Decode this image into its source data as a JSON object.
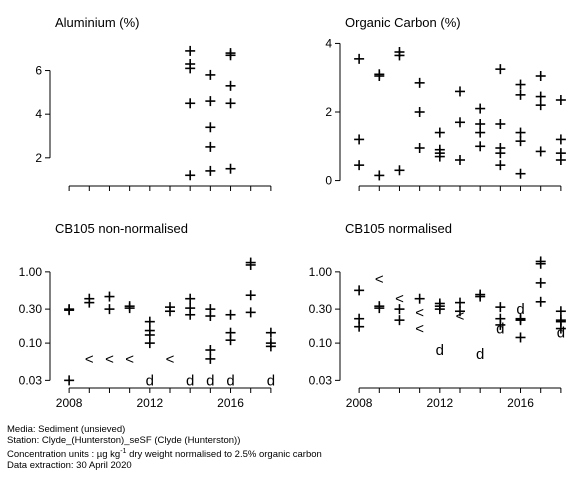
{
  "chart_data": [
    {
      "type": "scatter",
      "title": "Aluminium (%)",
      "xlim": [
        2007.3,
        2018.7
      ],
      "ylim": [
        0.8,
        7.4
      ],
      "log_y": false,
      "yticks": [
        2,
        4,
        6
      ],
      "ytick_labels": [
        "2",
        "4",
        "6"
      ],
      "xticks": [
        2008,
        2012,
        2016
      ],
      "xtick_labels": [],
      "points": [
        {
          "x": 2014,
          "y": 6.9,
          "m": "+"
        },
        {
          "x": 2014,
          "y": 6.3,
          "m": "+"
        },
        {
          "x": 2014,
          "y": 6.1,
          "m": "+"
        },
        {
          "x": 2014,
          "y": 4.5,
          "m": "+"
        },
        {
          "x": 2014,
          "y": 1.2,
          "m": "+"
        },
        {
          "x": 2015,
          "y": 5.8,
          "m": "+"
        },
        {
          "x": 2015,
          "y": 4.6,
          "m": "+"
        },
        {
          "x": 2015,
          "y": 3.4,
          "m": "+"
        },
        {
          "x": 2015,
          "y": 2.5,
          "m": "+"
        },
        {
          "x": 2015,
          "y": 1.4,
          "m": "+"
        },
        {
          "x": 2016,
          "y": 6.8,
          "m": "+"
        },
        {
          "x": 2016,
          "y": 6.7,
          "m": "+"
        },
        {
          "x": 2016,
          "y": 5.3,
          "m": "+"
        },
        {
          "x": 2016,
          "y": 4.5,
          "m": "+"
        },
        {
          "x": 2016,
          "y": 1.5,
          "m": "+"
        }
      ]
    },
    {
      "type": "scatter",
      "title": "Organic Carbon (%)",
      "xlim": [
        2007.3,
        2018.7
      ],
      "ylim": [
        -0.1,
        4.1
      ],
      "log_y": false,
      "yticks": [
        0,
        2,
        4
      ],
      "ytick_labels": [
        "0",
        "2",
        "4"
      ],
      "xticks": [
        2008,
        2012,
        2016
      ],
      "xtick_labels": [],
      "points": [
        {
          "x": 2008,
          "y": 3.55,
          "m": "+"
        },
        {
          "x": 2008,
          "y": 1.2,
          "m": "+"
        },
        {
          "x": 2008,
          "y": 0.45,
          "m": "+"
        },
        {
          "x": 2009,
          "y": 3.1,
          "m": "+"
        },
        {
          "x": 2009,
          "y": 3.05,
          "m": "+"
        },
        {
          "x": 2009,
          "y": 0.15,
          "m": "+"
        },
        {
          "x": 2010,
          "y": 3.75,
          "m": "+"
        },
        {
          "x": 2010,
          "y": 3.65,
          "m": "+"
        },
        {
          "x": 2010,
          "y": 0.3,
          "m": "+"
        },
        {
          "x": 2011,
          "y": 2.85,
          "m": "+"
        },
        {
          "x": 2011,
          "y": 2.0,
          "m": "+"
        },
        {
          "x": 2011,
          "y": 0.95,
          "m": "+"
        },
        {
          "x": 2012,
          "y": 1.4,
          "m": "+"
        },
        {
          "x": 2012,
          "y": 0.9,
          "m": "+"
        },
        {
          "x": 2012,
          "y": 0.8,
          "m": "+"
        },
        {
          "x": 2012,
          "y": 0.7,
          "m": "+"
        },
        {
          "x": 2013,
          "y": 2.6,
          "m": "+"
        },
        {
          "x": 2013,
          "y": 1.7,
          "m": "+"
        },
        {
          "x": 2013,
          "y": 0.6,
          "m": "+"
        },
        {
          "x": 2014,
          "y": 2.1,
          "m": "+"
        },
        {
          "x": 2014,
          "y": 1.65,
          "m": "+"
        },
        {
          "x": 2014,
          "y": 1.4,
          "m": "+"
        },
        {
          "x": 2014,
          "y": 1.0,
          "m": "+"
        },
        {
          "x": 2015,
          "y": 3.25,
          "m": "+"
        },
        {
          "x": 2015,
          "y": 1.65,
          "m": "+"
        },
        {
          "x": 2015,
          "y": 0.95,
          "m": "+"
        },
        {
          "x": 2015,
          "y": 0.8,
          "m": "+"
        },
        {
          "x": 2015,
          "y": 0.45,
          "m": "+"
        },
        {
          "x": 2016,
          "y": 2.8,
          "m": "+"
        },
        {
          "x": 2016,
          "y": 2.5,
          "m": "+"
        },
        {
          "x": 2016,
          "y": 1.4,
          "m": "+"
        },
        {
          "x": 2016,
          "y": 1.15,
          "m": "+"
        },
        {
          "x": 2016,
          "y": 0.2,
          "m": "+"
        },
        {
          "x": 2017,
          "y": 3.05,
          "m": "+"
        },
        {
          "x": 2017,
          "y": 2.45,
          "m": "+"
        },
        {
          "x": 2017,
          "y": 2.2,
          "m": "+"
        },
        {
          "x": 2017,
          "y": 0.85,
          "m": "+"
        },
        {
          "x": 2018,
          "y": 2.35,
          "m": "+"
        },
        {
          "x": 2018,
          "y": 1.2,
          "m": "+"
        },
        {
          "x": 2018,
          "y": 0.8,
          "m": "+"
        },
        {
          "x": 2018,
          "y": 0.6,
          "m": "+"
        }
      ]
    },
    {
      "type": "scatter",
      "title": "CB105 non-normalised",
      "xlim": [
        2007.3,
        2018.7
      ],
      "ylim": [
        0.025,
        1.9
      ],
      "log_y": true,
      "yticks": [
        0.03,
        0.1,
        0.3,
        1.0
      ],
      "ytick_labels": [
        "0.03",
        "0.10",
        "0.30",
        "1.00"
      ],
      "xticks": [
        2008,
        2012,
        2016
      ],
      "xtick_labels": [
        "2008",
        "2012",
        "2016"
      ],
      "points": [
        {
          "x": 2008,
          "y": 0.3,
          "m": "+"
        },
        {
          "x": 2008,
          "y": 0.29,
          "m": "+"
        },
        {
          "x": 2008,
          "y": 0.03,
          "m": "+"
        },
        {
          "x": 2009,
          "y": 0.42,
          "m": "+"
        },
        {
          "x": 2009,
          "y": 0.37,
          "m": "+"
        },
        {
          "x": 2009,
          "y": 0.06,
          "m": "<"
        },
        {
          "x": 2010,
          "y": 0.45,
          "m": "+"
        },
        {
          "x": 2010,
          "y": 0.3,
          "m": "+"
        },
        {
          "x": 2010,
          "y": 0.06,
          "m": "<"
        },
        {
          "x": 2011,
          "y": 0.33,
          "m": "+"
        },
        {
          "x": 2011,
          "y": 0.31,
          "m": "+"
        },
        {
          "x": 2011,
          "y": 0.06,
          "m": "<"
        },
        {
          "x": 2012,
          "y": 0.2,
          "m": "+"
        },
        {
          "x": 2012,
          "y": 0.15,
          "m": "+"
        },
        {
          "x": 2012,
          "y": 0.13,
          "m": "+"
        },
        {
          "x": 2012,
          "y": 0.1,
          "m": "+"
        },
        {
          "x": 2012,
          "y": 0.03,
          "m": "d"
        },
        {
          "x": 2013,
          "y": 0.32,
          "m": "+"
        },
        {
          "x": 2013,
          "y": 0.28,
          "m": "+"
        },
        {
          "x": 2013,
          "y": 0.06,
          "m": "<"
        },
        {
          "x": 2014,
          "y": 0.42,
          "m": "+"
        },
        {
          "x": 2014,
          "y": 0.31,
          "m": "+"
        },
        {
          "x": 2014,
          "y": 0.25,
          "m": "+"
        },
        {
          "x": 2014,
          "y": 0.03,
          "m": "d"
        },
        {
          "x": 2015,
          "y": 0.3,
          "m": "+"
        },
        {
          "x": 2015,
          "y": 0.24,
          "m": "+"
        },
        {
          "x": 2015,
          "y": 0.08,
          "m": "+"
        },
        {
          "x": 2015,
          "y": 0.06,
          "m": "+"
        },
        {
          "x": 2015,
          "y": 0.03,
          "m": "d"
        },
        {
          "x": 2016,
          "y": 0.25,
          "m": "+"
        },
        {
          "x": 2016,
          "y": 0.14,
          "m": "+"
        },
        {
          "x": 2016,
          "y": 0.11,
          "m": "+"
        },
        {
          "x": 2016,
          "y": 0.03,
          "m": "d"
        },
        {
          "x": 2017,
          "y": 1.35,
          "m": "+"
        },
        {
          "x": 2017,
          "y": 1.25,
          "m": "+"
        },
        {
          "x": 2017,
          "y": 0.47,
          "m": "+"
        },
        {
          "x": 2017,
          "y": 0.27,
          "m": "+"
        },
        {
          "x": 2018,
          "y": 0.14,
          "m": "+"
        },
        {
          "x": 2018,
          "y": 0.1,
          "m": "+"
        },
        {
          "x": 2018,
          "y": 0.09,
          "m": "+"
        },
        {
          "x": 2018,
          "y": 0.03,
          "m": "d"
        }
      ]
    },
    {
      "type": "scatter",
      "title": "CB105 normalised",
      "xlim": [
        2007.3,
        2018.7
      ],
      "ylim": [
        0.025,
        1.9
      ],
      "log_y": true,
      "yticks": [
        0.03,
        0.1,
        0.3,
        1.0
      ],
      "ytick_labels": [
        "0.03",
        "0.10",
        "0.30",
        "1.00"
      ],
      "xticks": [
        2008,
        2012,
        2016
      ],
      "xtick_labels": [
        "2008",
        "2012",
        "2016"
      ],
      "points": [
        {
          "x": 2008,
          "y": 0.55,
          "m": "+"
        },
        {
          "x": 2008,
          "y": 0.22,
          "m": "+"
        },
        {
          "x": 2008,
          "y": 0.17,
          "m": "+"
        },
        {
          "x": 2009,
          "y": 0.8,
          "m": "<"
        },
        {
          "x": 2009,
          "y": 0.33,
          "m": "+"
        },
        {
          "x": 2009,
          "y": 0.31,
          "m": "+"
        },
        {
          "x": 2010,
          "y": 0.42,
          "m": "<"
        },
        {
          "x": 2010,
          "y": 0.3,
          "m": "+"
        },
        {
          "x": 2010,
          "y": 0.21,
          "m": "+"
        },
        {
          "x": 2011,
          "y": 0.42,
          "m": "+"
        },
        {
          "x": 2011,
          "y": 0.27,
          "m": "<"
        },
        {
          "x": 2011,
          "y": 0.16,
          "m": "<"
        },
        {
          "x": 2012,
          "y": 0.36,
          "m": "+"
        },
        {
          "x": 2012,
          "y": 0.33,
          "m": "+"
        },
        {
          "x": 2012,
          "y": 0.3,
          "m": "+"
        },
        {
          "x": 2012,
          "y": 0.08,
          "m": "d"
        },
        {
          "x": 2013,
          "y": 0.37,
          "m": "+"
        },
        {
          "x": 2013,
          "y": 0.28,
          "m": "+"
        },
        {
          "x": 2013,
          "y": 0.24,
          "m": "<"
        },
        {
          "x": 2014,
          "y": 0.48,
          "m": "+"
        },
        {
          "x": 2014,
          "y": 0.45,
          "m": "+"
        },
        {
          "x": 2014,
          "y": 0.07,
          "m": "d"
        },
        {
          "x": 2015,
          "y": 0.32,
          "m": "+"
        },
        {
          "x": 2015,
          "y": 0.22,
          "m": "+"
        },
        {
          "x": 2015,
          "y": 0.18,
          "m": "+"
        },
        {
          "x": 2015,
          "y": 0.16,
          "m": "d"
        },
        {
          "x": 2016,
          "y": 0.3,
          "m": "d"
        },
        {
          "x": 2016,
          "y": 0.22,
          "m": "+"
        },
        {
          "x": 2016,
          "y": 0.21,
          "m": "+"
        },
        {
          "x": 2016,
          "y": 0.12,
          "m": "+"
        },
        {
          "x": 2017,
          "y": 1.4,
          "m": "+"
        },
        {
          "x": 2017,
          "y": 1.3,
          "m": "+"
        },
        {
          "x": 2017,
          "y": 0.7,
          "m": "+"
        },
        {
          "x": 2017,
          "y": 0.38,
          "m": "+"
        },
        {
          "x": 2018,
          "y": 0.28,
          "m": "+"
        },
        {
          "x": 2018,
          "y": 0.21,
          "m": "+"
        },
        {
          "x": 2018,
          "y": 0.2,
          "m": "+"
        },
        {
          "x": 2018,
          "y": 0.16,
          "m": "+"
        },
        {
          "x": 2018,
          "y": 0.14,
          "m": "d"
        }
      ]
    }
  ],
  "footer": {
    "media": "Media: Sediment (unsieved)",
    "station": "Station: Clyde_(Hunterston)_seSF (Clyde (Hunterston))",
    "units_prefix": "Concentration units : µg kg",
    "units_sup": "-1",
    "units_suffix": " dry weight normalised to 2.5% organic carbon",
    "extraction": "Data extraction: 30 April 2020"
  }
}
